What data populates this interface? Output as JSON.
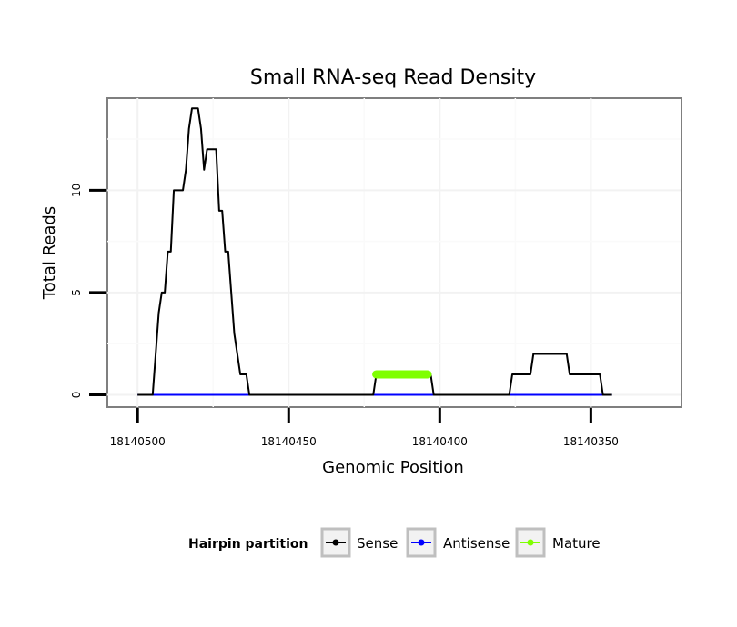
{
  "chart_data": {
    "type": "line",
    "title": "Small RNA-seq Read Density",
    "xlabel": "Genomic Position",
    "ylabel": "Total Reads",
    "x_reversed": true,
    "xlim": [
      18140510,
      18140320
    ],
    "ylim": [
      -0.6,
      14.5
    ],
    "x_ticks": [
      18140500,
      18140450,
      18140400,
      18140350
    ],
    "x_tick_labels": [
      "18140500",
      "18140450",
      "18140400",
      "18140350"
    ],
    "y_ticks": [
      0,
      5,
      10
    ],
    "y_tick_labels": [
      "0",
      "5",
      "10"
    ],
    "grid": true,
    "legend": {
      "title": "Hairpin partition",
      "position": "bottom",
      "entries": [
        {
          "label": "Sense",
          "color": "#000000"
        },
        {
          "label": "Antisense",
          "color": "#0000ff"
        },
        {
          "label": "Mature",
          "color": "#7fff00"
        }
      ]
    },
    "series": [
      {
        "name": "Sense",
        "color": "#000000",
        "step": true,
        "points": [
          [
            18140500,
            0
          ],
          [
            18140495,
            0
          ],
          [
            18140494,
            2
          ],
          [
            18140493,
            4
          ],
          [
            18140492,
            5
          ],
          [
            18140490,
            7
          ],
          [
            18140488,
            10
          ],
          [
            18140484,
            11
          ],
          [
            18140483,
            13
          ],
          [
            18140482,
            14
          ],
          [
            18140479,
            13
          ],
          [
            18140478,
            11
          ],
          [
            18140477,
            12
          ],
          [
            18140473,
            9
          ],
          [
            18140471,
            7
          ],
          [
            18140469,
            5
          ],
          [
            18140468,
            3
          ],
          [
            18140467,
            2
          ],
          [
            18140466,
            1
          ],
          [
            18140463,
            0
          ],
          [
            18140422,
            0
          ],
          [
            18140421,
            1
          ],
          [
            18140416,
            1
          ],
          [
            18140415,
            1
          ],
          [
            18140402,
            0
          ],
          [
            18140377,
            0
          ],
          [
            18140376,
            1
          ],
          [
            18140369,
            2
          ],
          [
            18140357,
            1
          ],
          [
            18140346,
            0
          ],
          [
            18140343,
            0
          ]
        ]
      },
      {
        "name": "Antisense",
        "color": "#0000ff",
        "points": [
          [
            18140500,
            0
          ],
          [
            18140343,
            0
          ]
        ]
      },
      {
        "name": "Mature",
        "color": "#7fff00",
        "points": [
          [
            18140421,
            1
          ],
          [
            18140404,
            1
          ]
        ]
      }
    ]
  }
}
